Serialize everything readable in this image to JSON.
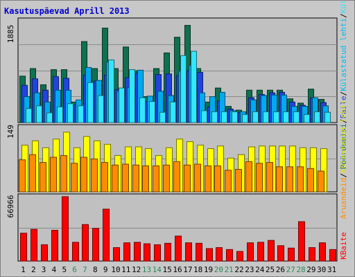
{
  "chart_data": {
    "type": "bar",
    "title": "Kasutuspäevad Aprill 2013",
    "categories": [
      "1",
      "2",
      "3",
      "4",
      "5",
      "6",
      "7",
      "8",
      "9",
      "10",
      "11",
      "12",
      "13",
      "14",
      "15",
      "16",
      "17",
      "18",
      "19",
      "20",
      "21",
      "22",
      "23",
      "24",
      "25",
      "26",
      "27",
      "28",
      "29",
      "30",
      "31"
    ],
    "weekend_days": [
      "6",
      "7",
      "13",
      "14",
      "20",
      "21",
      "27",
      "28"
    ],
    "panels": [
      {
        "id": "top",
        "max_label": "1885",
        "ylim": [
          0,
          1885
        ],
        "legend": [
          "Pöördumisi",
          "/",
          "Faile",
          "/",
          "Külastatud lehti",
          "/",
          "Külastusi"
        ],
        "series": [
          {
            "name": "Pöördumisi",
            "color": "#107050",
            "values": [
              860,
              1000,
              700,
              980,
              980,
              380,
              1500,
              1000,
              1750,
              1000,
              1400,
              960,
              480,
              1000,
              1290,
              1580,
              1800,
              1000,
              380,
              640,
              300,
              230,
              600,
              600,
              600,
              600,
              440,
              360,
              620,
              430,
              0
            ]
          },
          {
            "name": "Faile",
            "color": "#2244dd",
            "values": [
              690,
              810,
              600,
              850,
              820,
              330,
              880,
              770,
              880,
              610,
              830,
              920,
              390,
              890,
              900,
              870,
              960,
              930,
              290,
              400,
              250,
              190,
              460,
              520,
              550,
              560,
              380,
              320,
              460,
              370,
              0
            ]
          },
          {
            "name": "Külastatud lehti",
            "color": "#00aaee",
            "values": [
              480,
              550,
              380,
              600,
              600,
              420,
              1020,
              780,
              1120,
              580,
              650,
              970,
              490,
              580,
              500,
              950,
              1060,
              550,
              480,
              560,
              220,
              200,
              420,
              500,
              510,
              510,
              300,
              300,
              460,
              310,
              0
            ]
          },
          {
            "name": "Külastusi",
            "color": "#33e6ff",
            "values": [
              260,
              310,
              180,
              290,
              350,
              310,
              740,
              500,
              1160,
              640,
              980,
              460,
              390,
              190,
              380,
              1240,
              1320,
              220,
              200,
              200,
              200,
              150,
              200,
              200,
              200,
              200,
              200,
              150,
              200,
              190,
              0
            ]
          }
        ]
      },
      {
        "id": "middle",
        "max_label": "149",
        "ylim": [
          0,
          149
        ],
        "legend": [
          "Aruandeid",
          "/",
          "Külastatud lehti"
        ],
        "series": [
          {
            "name": "Külastatud lehti",
            "color": "#ffff00",
            "values": [
              108,
              118,
              102,
              122,
              138,
              102,
              128,
              118,
              110,
              84,
              104,
              104,
              100,
              84,
              102,
              122,
              116,
              108,
              100,
              106,
              78,
              86,
              104,
              106,
              106,
              106,
              106,
              102,
              102,
              100,
              0
            ]
          },
          {
            "name": "Aruandeid",
            "color": "#ff8c00",
            "values": [
              74,
              86,
              68,
              80,
              84,
              66,
              80,
              76,
              68,
              62,
              64,
              62,
              60,
              60,
              62,
              70,
              62,
              64,
              60,
              60,
              50,
              52,
              70,
              66,
              68,
              58,
              58,
              58,
              54,
              48,
              0
            ]
          }
        ]
      },
      {
        "id": "bottom",
        "max_label": "66966",
        "ylim": [
          0,
          66966
        ],
        "legend": [
          "KBaite"
        ],
        "series": [
          {
            "name": "KBaite",
            "color": "#ff0000",
            "values": [
              29000,
              33000,
              17000,
              32000,
              66966,
              19500,
              38000,
              34000,
              54000,
              14000,
              19000,
              19500,
              18000,
              17000,
              18500,
              26000,
              19000,
              18500,
              13000,
              14000,
              12000,
              10000,
              19000,
              19500,
              21500,
              16000,
              13500,
              41000,
              14000,
              19000,
              12000
            ]
          }
        ]
      }
    ]
  }
}
